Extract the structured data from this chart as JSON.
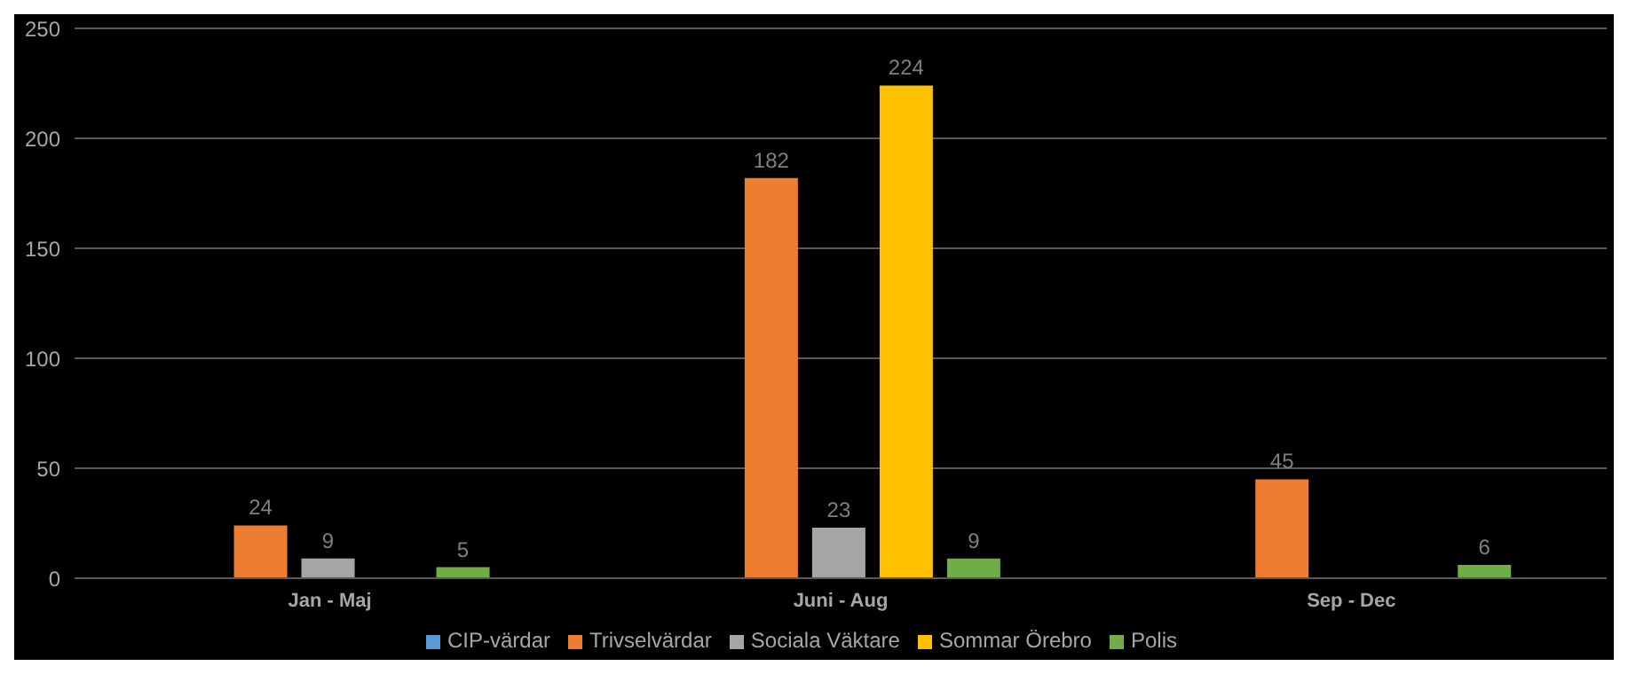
{
  "chart_data": {
    "type": "bar",
    "categories": [
      "Jan - Maj",
      "Juni - Aug",
      "Sep - Dec"
    ],
    "series": [
      {
        "name": "CIP-värdar",
        "color": "#5b9bd5",
        "values": [
          null,
          null,
          null
        ]
      },
      {
        "name": "Trivselvärdar",
        "color": "#ed7d31",
        "values": [
          24,
          182,
          45
        ]
      },
      {
        "name": "Sociala Väktare",
        "color": "#a5a5a5",
        "values": [
          9,
          23,
          null
        ]
      },
      {
        "name": "Sommar Örebro",
        "color": "#ffc000",
        "values": [
          null,
          224,
          null
        ]
      },
      {
        "name": "Polis",
        "color": "#70ad47",
        "values": [
          5,
          9,
          6
        ]
      }
    ],
    "ylim": [
      0,
      250
    ],
    "yticks": [
      0,
      50,
      100,
      150,
      200,
      250
    ],
    "grid": "y",
    "legend": "bottom",
    "data_labels": true
  }
}
